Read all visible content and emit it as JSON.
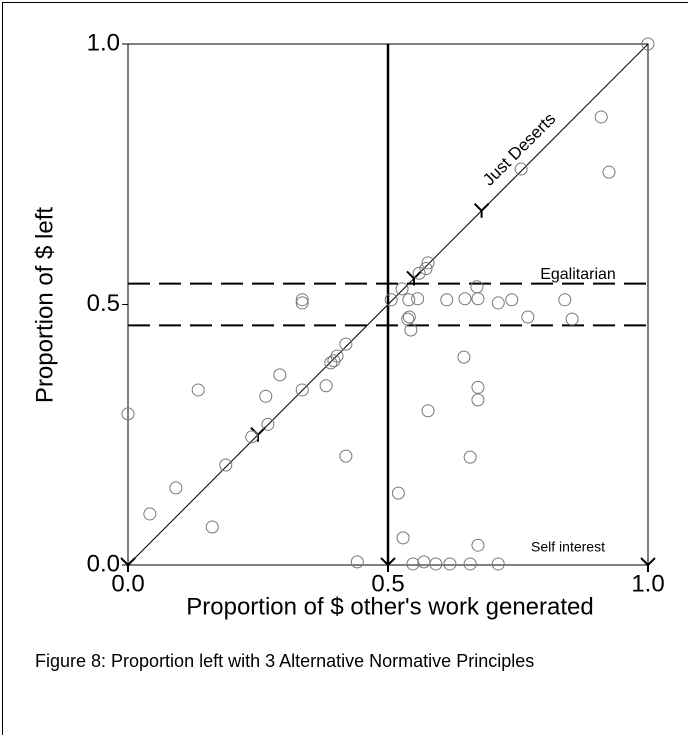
{
  "chart_data": {
    "type": "scatter",
    "xlabel": "Proportion of $ other's work generated",
    "ylabel": "Proportion of $ left",
    "caption": "Figure 8: Proportion left with 3 Alternative Normative Principles",
    "xlim": [
      0,
      1
    ],
    "ylim": [
      0,
      1
    ],
    "xticks": [
      {
        "value": 0,
        "label": "0.0"
      },
      0.5,
      {
        "value": 1,
        "label": "1.0"
      }
    ],
    "yticks": [
      {
        "value": 0,
        "label": "0.0"
      },
      0.5,
      {
        "value": 1,
        "label": "1.0"
      }
    ],
    "vertical_line": 0.5,
    "dashed_lines": [
      0.54,
      0.46
    ],
    "annotations": [
      "Just Deserts",
      "Egalitarian",
      "Self interest"
    ],
    "markers": {
      "x": [
        0.25,
        0.55,
        0.68,
        0,
        0.5,
        1
      ],
      "y": [
        0.25,
        0.55,
        0.68,
        0,
        0,
        0
      ]
    },
    "x": [
      1.0,
      0.91,
      0.756,
      0.925,
      0.56,
      0.577,
      0.335,
      0.335,
      0.506,
      0.527,
      0.54,
      0.541,
      0.538,
      0.544,
      0.557,
      0.573,
      0.613,
      0.648,
      0.671,
      0.673,
      0.712,
      0.738,
      0.769,
      0.84,
      0.854,
      0.419,
      0.402,
      0.396,
      0.39,
      0.381,
      0.335,
      0.292,
      0.265,
      0.135,
      0.269,
      0.238,
      0.188,
      0.092,
      0.042,
      0.162,
      0,
      0.419,
      0.646,
      0.673,
      0.673,
      0.577,
      0.658,
      0.52,
      0.529,
      0.673,
      0.441,
      0.548,
      0.569,
      0.592,
      0.619,
      0.658,
      0.712
    ],
    "y": [
      1.0,
      0.86,
      0.76,
      0.754,
      0.56,
      0.58,
      0.509,
      0.503,
      0.509,
      0.53,
      0.509,
      0.476,
      0.472,
      0.451,
      0.511,
      0.569,
      0.509,
      0.511,
      0.534,
      0.511,
      0.503,
      0.509,
      0.476,
      0.509,
      0.472,
      0.424,
      0.401,
      0.392,
      0.388,
      0.344,
      0.336,
      0.365,
      0.324,
      0.336,
      0.27,
      0.246,
      0.192,
      0.148,
      0.098,
      0.073,
      0.29,
      0.209,
      0.399,
      0.341,
      0.317,
      0.296,
      0.207,
      0.138,
      0.052,
      0.038,
      0.006,
      0.002,
      0.006,
      0.002,
      0.002,
      0.002,
      0.002
    ]
  }
}
